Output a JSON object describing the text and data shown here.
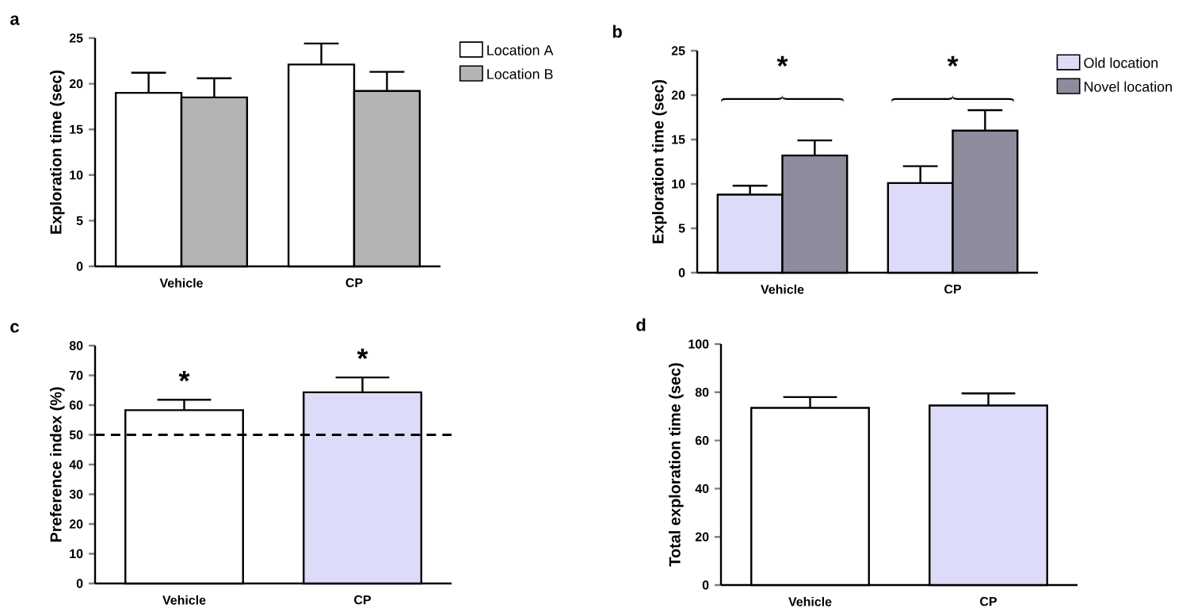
{
  "chart_data": [
    {
      "type": "bar",
      "title": "a",
      "ylabel": "Exploration time (sec)",
      "categories": [
        "Vehicle",
        "CP"
      ],
      "series": [
        {
          "name": "Location A",
          "color": "#ffffff",
          "values": [
            19.0,
            22.1
          ],
          "errors": [
            2.2,
            2.3
          ]
        },
        {
          "name": "Location B",
          "color": "#b4b4b4",
          "values": [
            18.5,
            19.2
          ],
          "errors": [
            2.1,
            2.1
          ]
        }
      ],
      "ylim": [
        0,
        25
      ],
      "yticks": [
        0,
        5,
        10,
        15,
        20,
        25
      ],
      "legend": "right"
    },
    {
      "type": "bar",
      "title": "b",
      "ylabel": "Exploration time (sec)",
      "categories": [
        "Vehicle",
        "CP"
      ],
      "series": [
        {
          "name": "Old location",
          "color": "#dcdcf8",
          "values": [
            8.8,
            10.1
          ],
          "errors": [
            1.0,
            1.9
          ]
        },
        {
          "name": "Novel location",
          "color": "#8c8c9c",
          "values": [
            13.2,
            16.0
          ],
          "errors": [
            1.7,
            2.3
          ]
        }
      ],
      "ylim": [
        0,
        25
      ],
      "yticks": [
        0,
        5,
        10,
        15,
        20,
        25
      ],
      "legend": "right",
      "annotations": [
        "*",
        "*"
      ]
    },
    {
      "type": "bar",
      "title": "c",
      "ylabel": "Preference index (%)",
      "categories": [
        "Vehicle",
        "CP"
      ],
      "values": [
        58.3,
        64.3
      ],
      "errors": [
        3.5,
        5.0
      ],
      "colors": [
        "#ffffff",
        "#dcdcf8"
      ],
      "ylim": [
        0,
        80
      ],
      "yticks": [
        0,
        10,
        20,
        30,
        40,
        50,
        60,
        70,
        80
      ],
      "ref_lines": [
        {
          "axis": "y",
          "value": 50,
          "line_style": "dashed"
        }
      ],
      "annotations": [
        "*",
        "*"
      ]
    },
    {
      "type": "bar",
      "title": "d",
      "ylabel": "Total exploration time (sec)",
      "categories": [
        "Vehicle",
        "CP"
      ],
      "values": [
        73.5,
        74.5
      ],
      "errors": [
        4.5,
        5.0
      ],
      "colors": [
        "#ffffff",
        "#dcdcf8"
      ],
      "ylim": [
        0,
        100
      ],
      "yticks": [
        0,
        20,
        40,
        60,
        80,
        100
      ]
    }
  ]
}
